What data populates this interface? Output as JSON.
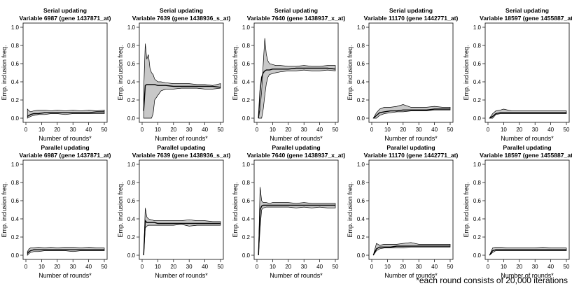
{
  "chart_data": {
    "type": "grid-of-line-band-charts",
    "rows": [
      {
        "row_title": "Serial updating",
        "panels": [
          {
            "title": "Variable 6987 (gene 1437871_at)",
            "x": [
              1,
              2,
              3,
              5,
              8,
              12,
              16,
              20,
              25,
              30,
              35,
              40,
              45,
              50
            ],
            "mean": [
              0.02,
              0.03,
              0.04,
              0.05,
              0.05,
              0.06,
              0.06,
              0.06,
              0.06,
              0.06,
              0.06,
              0.06,
              0.07,
              0.07
            ],
            "lower": [
              0.0,
              0.01,
              0.02,
              0.03,
              0.04,
              0.04,
              0.05,
              0.05,
              0.04,
              0.05,
              0.05,
              0.05,
              0.05,
              0.05
            ],
            "upper": [
              0.1,
              0.08,
              0.07,
              0.08,
              0.09,
              0.09,
              0.08,
              0.09,
              0.08,
              0.09,
              0.08,
              0.09,
              0.08,
              0.09
            ]
          },
          {
            "title": "Variable 7639 (gene 1438936_s_at)",
            "x": [
              1,
              2,
              3,
              4,
              5,
              6,
              7,
              8,
              10,
              12,
              15,
              20,
              25,
              30,
              35,
              40,
              45,
              50
            ],
            "mean": [
              0.08,
              0.36,
              0.37,
              0.37,
              0.37,
              0.37,
              0.37,
              0.37,
              0.36,
              0.36,
              0.36,
              0.35,
              0.35,
              0.35,
              0.35,
              0.35,
              0.35,
              0.34
            ],
            "lower": [
              0.0,
              0.0,
              0.0,
              0.0,
              0.0,
              0.0,
              0.05,
              0.2,
              0.25,
              0.3,
              0.32,
              0.32,
              0.33,
              0.33,
              0.33,
              0.32,
              0.32,
              0.33
            ],
            "upper": [
              0.3,
              0.82,
              0.65,
              0.7,
              0.55,
              0.5,
              0.48,
              0.43,
              0.4,
              0.4,
              0.39,
              0.38,
              0.38,
              0.38,
              0.37,
              0.37,
              0.36,
              0.38
            ]
          },
          {
            "title": "Variable 7640 (gene 1438937_x_at)",
            "x": [
              1,
              2,
              3,
              4,
              5,
              6,
              7,
              8,
              10,
              12,
              15,
              20,
              25,
              30,
              35,
              40,
              45,
              50
            ],
            "mean": [
              0.0,
              0.3,
              0.45,
              0.5,
              0.52,
              0.53,
              0.53,
              0.53,
              0.54,
              0.54,
              0.54,
              0.54,
              0.55,
              0.55,
              0.55,
              0.55,
              0.55,
              0.54
            ],
            "lower": [
              0.0,
              0.0,
              0.0,
              0.1,
              0.25,
              0.38,
              0.45,
              0.48,
              0.49,
              0.5,
              0.51,
              0.52,
              0.52,
              0.53,
              0.52,
              0.52,
              0.53,
              0.52
            ],
            "upper": [
              0.0,
              0.1,
              0.3,
              0.6,
              0.88,
              0.7,
              0.63,
              0.6,
              0.59,
              0.58,
              0.58,
              0.57,
              0.57,
              0.58,
              0.57,
              0.57,
              0.58,
              0.58
            ]
          },
          {
            "title": "Variable 11170 (gene 1442771_at)",
            "x": [
              1,
              3,
              5,
              8,
              12,
              16,
              20,
              25,
              30,
              35,
              40,
              45,
              50
            ],
            "mean": [
              0.0,
              0.03,
              0.06,
              0.07,
              0.08,
              0.08,
              0.09,
              0.09,
              0.09,
              0.09,
              0.1,
              0.1,
              0.1
            ],
            "lower": [
              0.0,
              0.0,
              0.03,
              0.05,
              0.06,
              0.07,
              0.07,
              0.08,
              0.08,
              0.08,
              0.09,
              0.09,
              0.09
            ],
            "upper": [
              0.0,
              0.06,
              0.1,
              0.12,
              0.12,
              0.13,
              0.15,
              0.12,
              0.12,
              0.12,
              0.13,
              0.12,
              0.12
            ]
          },
          {
            "title": "Variable 18597 (gene 1455887_at)",
            "x": [
              1,
              3,
              5,
              8,
              10,
              15,
              20,
              25,
              30,
              35,
              40,
              45,
              50
            ],
            "mean": [
              0.0,
              0.02,
              0.05,
              0.06,
              0.06,
              0.06,
              0.06,
              0.06,
              0.06,
              0.06,
              0.06,
              0.06,
              0.06
            ],
            "lower": [
              0.0,
              0.0,
              0.04,
              0.05,
              0.05,
              0.05,
              0.05,
              0.05,
              0.05,
              0.05,
              0.05,
              0.05,
              0.05
            ],
            "upper": [
              0.0,
              0.05,
              0.08,
              0.09,
              0.1,
              0.08,
              0.08,
              0.08,
              0.08,
              0.08,
              0.08,
              0.08,
              0.08
            ]
          }
        ]
      },
      {
        "row_title": "Parallel updating",
        "panels": [
          {
            "title": "Variable 6987 (gene 1437871_at)",
            "x": [
              1,
              2,
              3,
              5,
              8,
              12,
              16,
              20,
              25,
              30,
              35,
              40,
              45,
              50
            ],
            "mean": [
              0.02,
              0.04,
              0.05,
              0.06,
              0.06,
              0.06,
              0.06,
              0.06,
              0.06,
              0.06,
              0.06,
              0.06,
              0.06,
              0.06
            ],
            "lower": [
              0.0,
              0.02,
              0.03,
              0.04,
              0.04,
              0.05,
              0.05,
              0.05,
              0.05,
              0.04,
              0.05,
              0.05,
              0.05,
              0.05
            ],
            "upper": [
              0.04,
              0.07,
              0.08,
              0.08,
              0.09,
              0.08,
              0.09,
              0.08,
              0.09,
              0.09,
              0.08,
              0.09,
              0.08,
              0.08
            ]
          },
          {
            "title": "Variable 7639 (gene 1438936_s_at)",
            "x": [
              1,
              2,
              3,
              4,
              6,
              8,
              10,
              15,
              20,
              25,
              30,
              35,
              40,
              45,
              50
            ],
            "mean": [
              0.0,
              0.38,
              0.36,
              0.36,
              0.36,
              0.36,
              0.35,
              0.35,
              0.35,
              0.35,
              0.35,
              0.35,
              0.35,
              0.35,
              0.35
            ],
            "lower": [
              0.0,
              0.3,
              0.32,
              0.33,
              0.33,
              0.33,
              0.33,
              0.33,
              0.33,
              0.34,
              0.32,
              0.33,
              0.33,
              0.33,
              0.33
            ],
            "upper": [
              0.0,
              0.52,
              0.42,
              0.4,
              0.39,
              0.38,
              0.38,
              0.38,
              0.38,
              0.38,
              0.39,
              0.38,
              0.38,
              0.37,
              0.37
            ]
          },
          {
            "title": "Variable 7640 (gene 1438937_x_at)",
            "x": [
              1,
              2,
              3,
              4,
              6,
              8,
              10,
              15,
              20,
              25,
              30,
              35,
              40,
              45,
              50
            ],
            "mean": [
              0.0,
              0.5,
              0.54,
              0.55,
              0.55,
              0.55,
              0.55,
              0.55,
              0.55,
              0.55,
              0.55,
              0.55,
              0.55,
              0.55,
              0.55
            ],
            "lower": [
              0.0,
              0.3,
              0.5,
              0.52,
              0.53,
              0.53,
              0.53,
              0.53,
              0.53,
              0.52,
              0.53,
              0.52,
              0.53,
              0.52,
              0.52
            ],
            "upper": [
              0.0,
              0.75,
              0.6,
              0.58,
              0.58,
              0.57,
              0.58,
              0.58,
              0.58,
              0.57,
              0.58,
              0.57,
              0.57,
              0.57,
              0.57
            ]
          },
          {
            "title": "Variable 11170 (gene 1442771_at)",
            "x": [
              1,
              3,
              5,
              8,
              12,
              16,
              20,
              25,
              30,
              35,
              40,
              45,
              50
            ],
            "mean": [
              0.0,
              0.07,
              0.09,
              0.09,
              0.09,
              0.1,
              0.1,
              0.1,
              0.1,
              0.1,
              0.1,
              0.1,
              0.1
            ],
            "lower": [
              0.0,
              0.05,
              0.07,
              0.08,
              0.08,
              0.08,
              0.08,
              0.09,
              0.09,
              0.09,
              0.09,
              0.09,
              0.09
            ],
            "upper": [
              0.0,
              0.13,
              0.11,
              0.12,
              0.12,
              0.12,
              0.13,
              0.14,
              0.12,
              0.12,
              0.12,
              0.12,
              0.12
            ]
          },
          {
            "title": "Variable 18597 (gene 1455887_at)",
            "x": [
              1,
              3,
              5,
              8,
              12,
              16,
              20,
              25,
              30,
              35,
              40,
              45,
              50
            ],
            "mean": [
              0.0,
              0.05,
              0.06,
              0.06,
              0.06,
              0.06,
              0.06,
              0.06,
              0.06,
              0.06,
              0.06,
              0.06,
              0.06
            ],
            "lower": [
              0.0,
              0.03,
              0.05,
              0.05,
              0.05,
              0.05,
              0.05,
              0.05,
              0.05,
              0.05,
              0.05,
              0.05,
              0.05
            ],
            "upper": [
              0.0,
              0.08,
              0.09,
              0.09,
              0.08,
              0.08,
              0.08,
              0.08,
              0.08,
              0.09,
              0.08,
              0.08,
              0.08
            ]
          }
        ]
      }
    ],
    "xlabel": "Number of rounds*",
    "ylabel": "Emp. inclusion freq.",
    "xlim": [
      0,
      50
    ],
    "ylim": [
      0,
      1.0
    ],
    "xticks": [
      "0",
      "10",
      "20",
      "30",
      "40",
      "50"
    ],
    "yticks": [
      "0.0",
      "0.2",
      "0.4",
      "0.6",
      "0.8",
      "1.0"
    ],
    "band_color": "#c8c8c8",
    "line_color": "#000000"
  },
  "footnote": "*each round consists of 20,000 iterations"
}
